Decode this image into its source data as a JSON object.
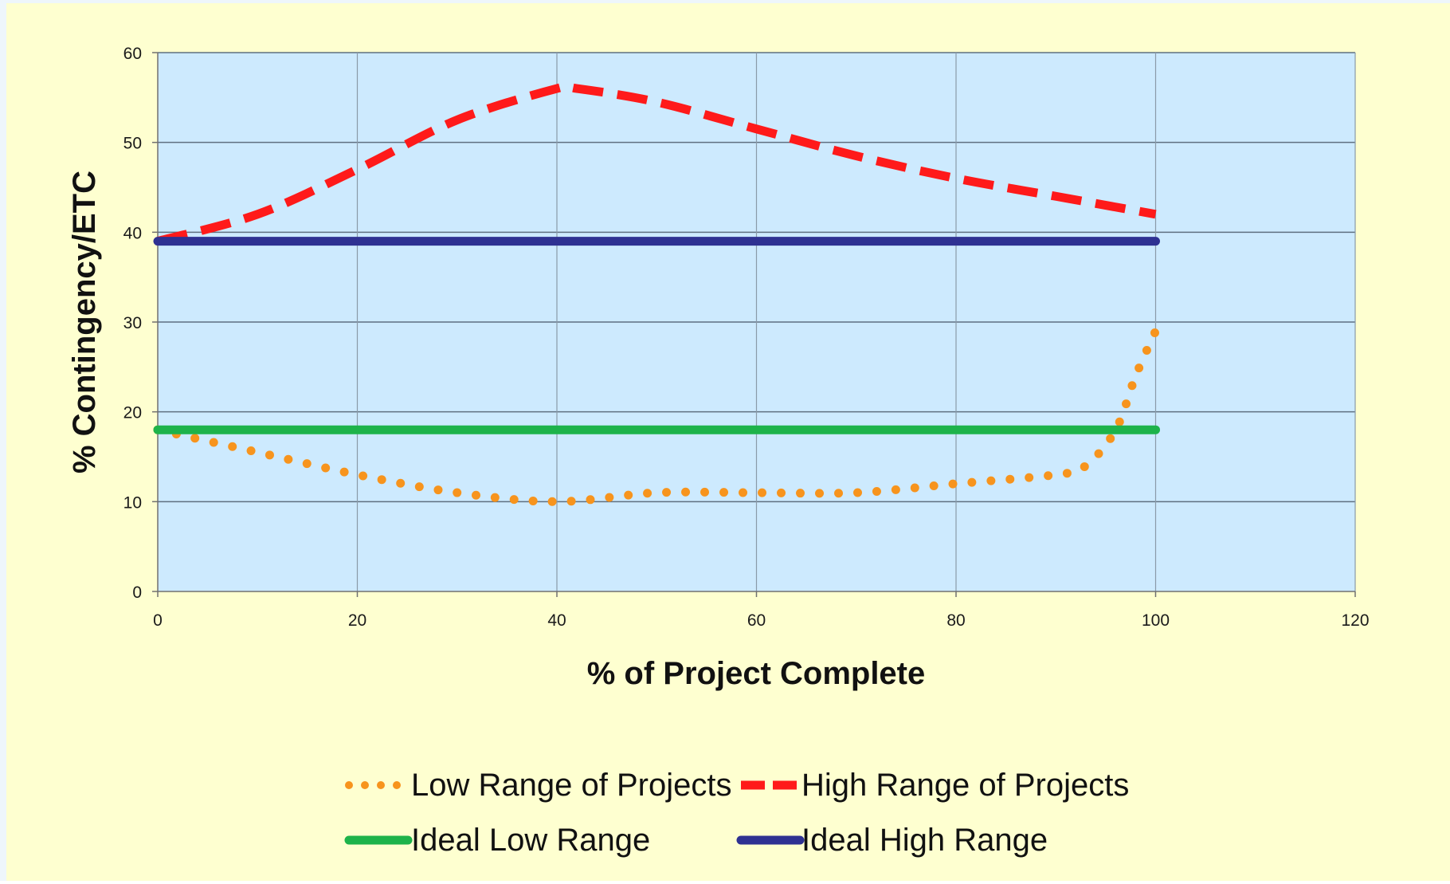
{
  "chart_data": {
    "type": "line",
    "title": "",
    "xlabel": "% of Project Complete",
    "ylabel": "% Contingency/ETC",
    "xlim": [
      0,
      120
    ],
    "ylim": [
      0,
      60
    ],
    "xticks": [
      0,
      20,
      40,
      60,
      80,
      100,
      120
    ],
    "yticks": [
      0,
      10,
      20,
      30,
      40,
      50,
      60
    ],
    "grid": true,
    "legend_position": "bottom",
    "background_color": "#feffd0",
    "plot_background_color": "#cdeafe",
    "series": [
      {
        "name": "Low Range of Projects",
        "color": "#f7941d",
        "style": "dotted",
        "x": [
          0,
          10,
          20,
          30,
          40,
          50,
          60,
          70,
          80,
          90,
          93,
          96,
          98,
          100
        ],
        "y": [
          18,
          15.5,
          13,
          11,
          10,
          11,
          11,
          11,
          12,
          13,
          14,
          18,
          24,
          29
        ]
      },
      {
        "name": "High Range of Projects",
        "color": "#ff1a1a",
        "style": "dashed",
        "x": [
          0,
          10,
          20,
          30,
          40,
          42,
          50,
          60,
          70,
          80,
          90,
          100
        ],
        "y": [
          39,
          42,
          47,
          52.5,
          56,
          56,
          54.5,
          51.5,
          48.5,
          46,
          44,
          42
        ]
      },
      {
        "name": "Ideal Low Range",
        "color": "#1db34a",
        "style": "solid",
        "x": [
          0,
          100
        ],
        "y": [
          18,
          18
        ]
      },
      {
        "name": "Ideal High Range",
        "color": "#2e3192",
        "style": "solid",
        "x": [
          0,
          100
        ],
        "y": [
          39,
          39
        ]
      }
    ]
  }
}
